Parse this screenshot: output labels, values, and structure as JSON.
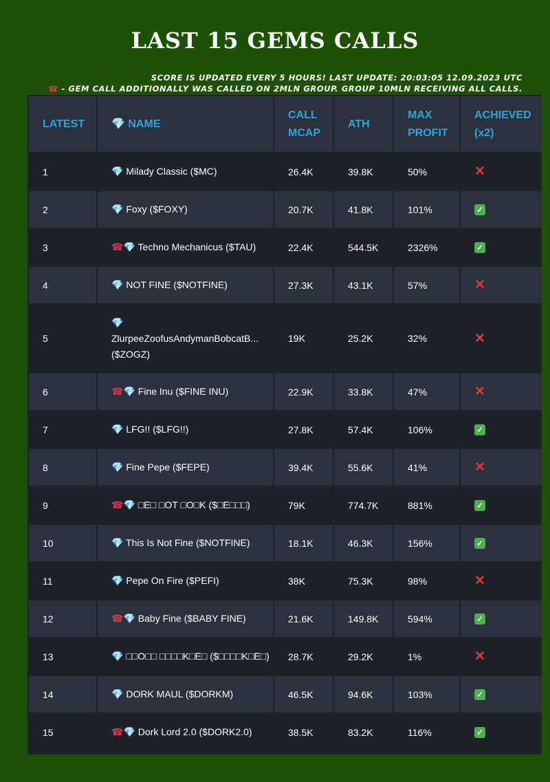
{
  "page": {
    "title": "LAST 15 GEMS CALLS",
    "note1": "SCORE IS UPDATED EVERY 5 HOURS! LAST UPDATE: 20:03:05 12.09.2023 UTC",
    "note2_icon": "☎",
    "note2": " - GEM CALL ADDITIONALLY WAS CALLED ON 2MLN GROUP. GROUP 10MLN RECEIVING ALL CALLS."
  },
  "icons": {
    "gem": "💎",
    "phone": "☎",
    "achieved_yes": "✓",
    "achieved_no": "✕"
  },
  "colors": {
    "background": "#1c5106",
    "header_text": "#2ea4dd",
    "row_dark": "#1c212a",
    "row_light": "#2c323d",
    "check_green": "#4caf50",
    "cross_red": "#e53935"
  },
  "table": {
    "headers": {
      "latest": "LATEST",
      "name": "NAME",
      "call_mcap_line1": "CALL",
      "call_mcap_line2": "MCAP",
      "ath": "ATH",
      "max_profit_line1": "MAX",
      "max_profit_line2": "PROFIT",
      "achieved_line1": "ACHIEVED",
      "achieved_line2": "(x2)"
    },
    "rows": [
      {
        "latest": "1",
        "phone": false,
        "name": "Milady Classic ($MC)",
        "call_mcap": "26.4K",
        "ath": "39.8K",
        "max_profit": "50%",
        "achieved": false
      },
      {
        "latest": "2",
        "phone": false,
        "name": "Foxy ($FOXY)",
        "call_mcap": "20.7K",
        "ath": "41.8K",
        "max_profit": "101%",
        "achieved": true
      },
      {
        "latest": "3",
        "phone": true,
        "name": "Techno Mechanicus ($TAU)",
        "call_mcap": "22.4K",
        "ath": "544.5K",
        "max_profit": "2326%",
        "achieved": true
      },
      {
        "latest": "4",
        "phone": false,
        "name": "NOT FINE ($NOTFINE)",
        "call_mcap": "27.3K",
        "ath": "43.1K",
        "max_profit": "57%",
        "achieved": false
      },
      {
        "latest": "5",
        "phone": false,
        "name_line1": "ZlurpeeZoofusAndymanBobcatB...",
        "name_line2": "($ZOGZ)",
        "call_mcap": "19K",
        "ath": "25.2K",
        "max_profit": "32%",
        "achieved": false
      },
      {
        "latest": "6",
        "phone": true,
        "name": "Fine Inu ($FINE INU)",
        "call_mcap": "22.9K",
        "ath": "33.8K",
        "max_profit": "47%",
        "achieved": false
      },
      {
        "latest": "7",
        "phone": false,
        "name": "LFG!! ($LFG!!)",
        "call_mcap": "27.8K",
        "ath": "57.4K",
        "max_profit": "106%",
        "achieved": true
      },
      {
        "latest": "8",
        "phone": false,
        "name": "Fine Pepe ($FEPE)",
        "call_mcap": "39.4K",
        "ath": "55.6K",
        "max_profit": "41%",
        "achieved": false
      },
      {
        "latest": "9",
        "phone": true,
        "name": "□E□ □OT □O□K ($□E□□□)",
        "call_mcap": "79K",
        "ath": "774.7K",
        "max_profit": "881%",
        "achieved": true
      },
      {
        "latest": "10",
        "phone": false,
        "name": "This Is Not Fine ($NOTFINE)",
        "call_mcap": "18.1K",
        "ath": "46.3K",
        "max_profit": "156%",
        "achieved": true
      },
      {
        "latest": "11",
        "phone": false,
        "name": "Pepe On Fire ($PEFI)",
        "call_mcap": "38K",
        "ath": "75.3K",
        "max_profit": "98%",
        "achieved": false
      },
      {
        "latest": "12",
        "phone": true,
        "name": "Baby Fine ($BABY FINE)",
        "call_mcap": "21.6K",
        "ath": "149.8K",
        "max_profit": "594%",
        "achieved": true
      },
      {
        "latest": "13",
        "phone": false,
        "name": "□□O□□ □□□□K□E□ ($□□□□K□E□)",
        "call_mcap": "28.7K",
        "ath": "29.2K",
        "max_profit": "1%",
        "achieved": false
      },
      {
        "latest": "14",
        "phone": false,
        "name": "DORK MAUL ($DORKM)",
        "call_mcap": "46.5K",
        "ath": "94.6K",
        "max_profit": "103%",
        "achieved": true
      },
      {
        "latest": "15",
        "phone": true,
        "name": "Dork Lord 2.0 ($DORK2.0)",
        "call_mcap": "38.5K",
        "ath": "83.2K",
        "max_profit": "116%",
        "achieved": true
      }
    ]
  }
}
